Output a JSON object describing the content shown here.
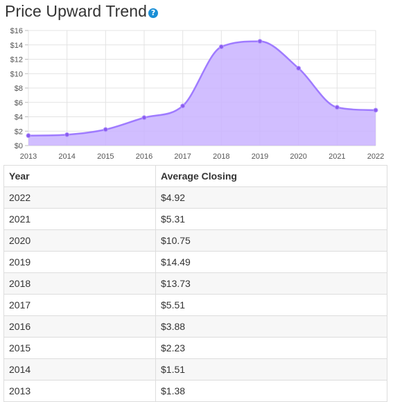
{
  "header": {
    "title": "Price Upward Trend",
    "help_icon": "question-circle-icon",
    "help_glyph": "?"
  },
  "colors": {
    "line": "#9f7bff",
    "fill": "#c9b3ff",
    "point": "#8a5cf0",
    "grid": "#e3e3e3",
    "help": "#1a8fd6"
  },
  "chart_data": {
    "type": "area",
    "curve": "smooth",
    "x": [
      2013,
      2014,
      2015,
      2016,
      2017,
      2018,
      2019,
      2020,
      2021,
      2022
    ],
    "y": [
      1.38,
      1.51,
      2.23,
      3.88,
      5.51,
      13.73,
      14.49,
      10.75,
      5.31,
      4.92
    ],
    "xlim": [
      2013,
      2022
    ],
    "ylim": [
      0,
      16
    ],
    "y_ticks": [
      "$0",
      "$2",
      "$4",
      "$6",
      "$8",
      "$10",
      "$12",
      "$14",
      "$16"
    ],
    "x_ticks": [
      "2013",
      "2014",
      "2015",
      "2016",
      "2017",
      "2018",
      "2019",
      "2020",
      "2021",
      "2022"
    ],
    "grid": true,
    "legend": "none"
  },
  "table": {
    "columns": [
      "Year",
      "Average Closing"
    ],
    "rows": [
      [
        "2022",
        "$4.92"
      ],
      [
        "2021",
        "$5.31"
      ],
      [
        "2020",
        "$10.75"
      ],
      [
        "2019",
        "$14.49"
      ],
      [
        "2018",
        "$13.73"
      ],
      [
        "2017",
        "$5.51"
      ],
      [
        "2016",
        "$3.88"
      ],
      [
        "2015",
        "$2.23"
      ],
      [
        "2014",
        "$1.51"
      ],
      [
        "2013",
        "$1.38"
      ]
    ]
  }
}
